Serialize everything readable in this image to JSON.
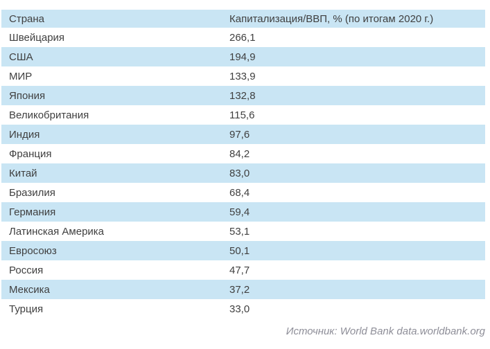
{
  "colors": {
    "row_blue": "#c9e5f4",
    "text": "#3f3f3f",
    "source_gray": "#8e8e98",
    "background": "#ffffff"
  },
  "table": {
    "headers": {
      "country": "Страна",
      "value": "Капитализация/ВВП, % (по итогам 2020 г.)"
    },
    "rows": [
      {
        "country": "Швейцария",
        "value": "266,1"
      },
      {
        "country": "США",
        "value": "194,9"
      },
      {
        "country": "МИР",
        "value": "133,9"
      },
      {
        "country": "Япония",
        "value": "132,8"
      },
      {
        "country": "Великобритания",
        "value": "115,6"
      },
      {
        "country": "Индия",
        "value": "97,6"
      },
      {
        "country": "Франция",
        "value": "84,2"
      },
      {
        "country": "Китай",
        "value": "83,0"
      },
      {
        "country": "Бразилия",
        "value": "68,4"
      },
      {
        "country": "Германия",
        "value": "59,4"
      },
      {
        "country": "Латинская Америка",
        "value": "53,1"
      },
      {
        "country": "Евросоюз",
        "value": "50,1"
      },
      {
        "country": "Россия",
        "value": "47,7"
      },
      {
        "country": "Мексика",
        "value": "37,2"
      },
      {
        "country": "Турция",
        "value": "33,0"
      }
    ]
  },
  "footer": {
    "source_label": "Источник: World Bank data.worldbank.org"
  }
}
